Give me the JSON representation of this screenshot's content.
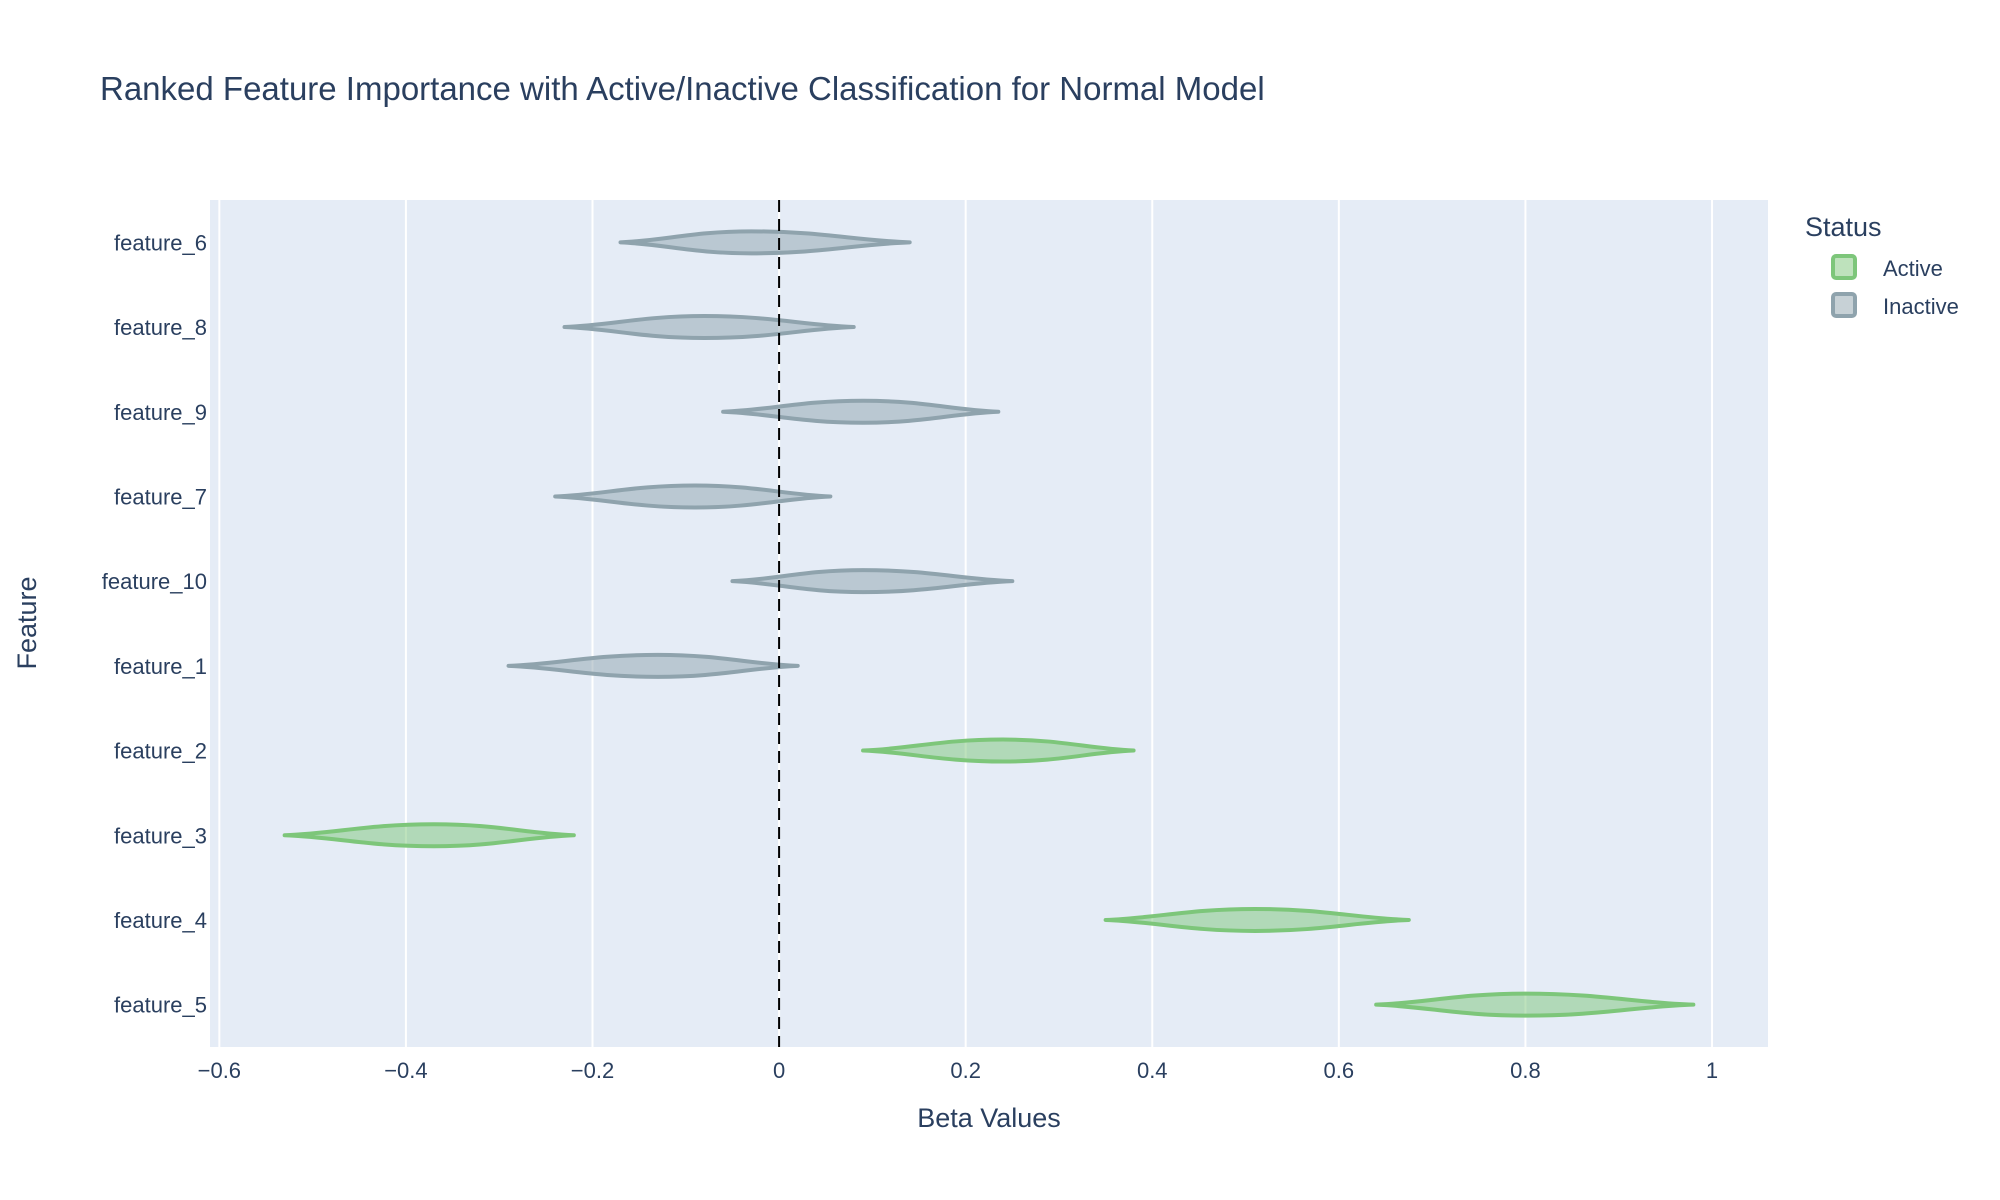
{
  "chart_data": {
    "type": "violin",
    "title": "Ranked Feature Importance with Active/Inactive Classification for Normal Model",
    "xlabel": "Beta Values",
    "ylabel": "Feature",
    "xlim": [
      -0.61,
      1.06
    ],
    "xticks": [
      -0.6,
      -0.4,
      -0.2,
      0,
      0.2,
      0.4,
      0.6,
      0.8,
      1
    ],
    "xtick_labels": [
      "−0.6",
      "−0.4",
      "−0.2",
      "0",
      "0.2",
      "0.4",
      "0.6",
      "0.8",
      "1"
    ],
    "reference_line": {
      "x": 0,
      "style": "dashed",
      "color": "#000000"
    },
    "grid": true,
    "legend": {
      "title": "Status",
      "position": "top-right",
      "entries": [
        {
          "name": "Active",
          "color": "#7dc67a"
        },
        {
          "name": "Inactive",
          "color": "#8fa3ad"
        }
      ]
    },
    "features": [
      {
        "name": "feature_6",
        "status": "Inactive",
        "min": -0.17,
        "center": -0.03,
        "max": 0.14
      },
      {
        "name": "feature_8",
        "status": "Inactive",
        "min": -0.23,
        "center": -0.08,
        "max": 0.08
      },
      {
        "name": "feature_9",
        "status": "Inactive",
        "min": -0.06,
        "center": 0.09,
        "max": 0.235
      },
      {
        "name": "feature_7",
        "status": "Inactive",
        "min": -0.24,
        "center": -0.09,
        "max": 0.055
      },
      {
        "name": "feature_10",
        "status": "Inactive",
        "min": -0.05,
        "center": 0.09,
        "max": 0.25
      },
      {
        "name": "feature_1",
        "status": "Inactive",
        "min": -0.29,
        "center": -0.13,
        "max": 0.02
      },
      {
        "name": "feature_2",
        "status": "Active",
        "min": 0.09,
        "center": 0.24,
        "max": 0.38
      },
      {
        "name": "feature_3",
        "status": "Active",
        "min": -0.53,
        "center": -0.37,
        "max": -0.22
      },
      {
        "name": "feature_4",
        "status": "Active",
        "min": 0.35,
        "center": 0.51,
        "max": 0.675
      },
      {
        "name": "feature_5",
        "status": "Active",
        "min": 0.64,
        "center": 0.8,
        "max": 0.98
      }
    ]
  }
}
